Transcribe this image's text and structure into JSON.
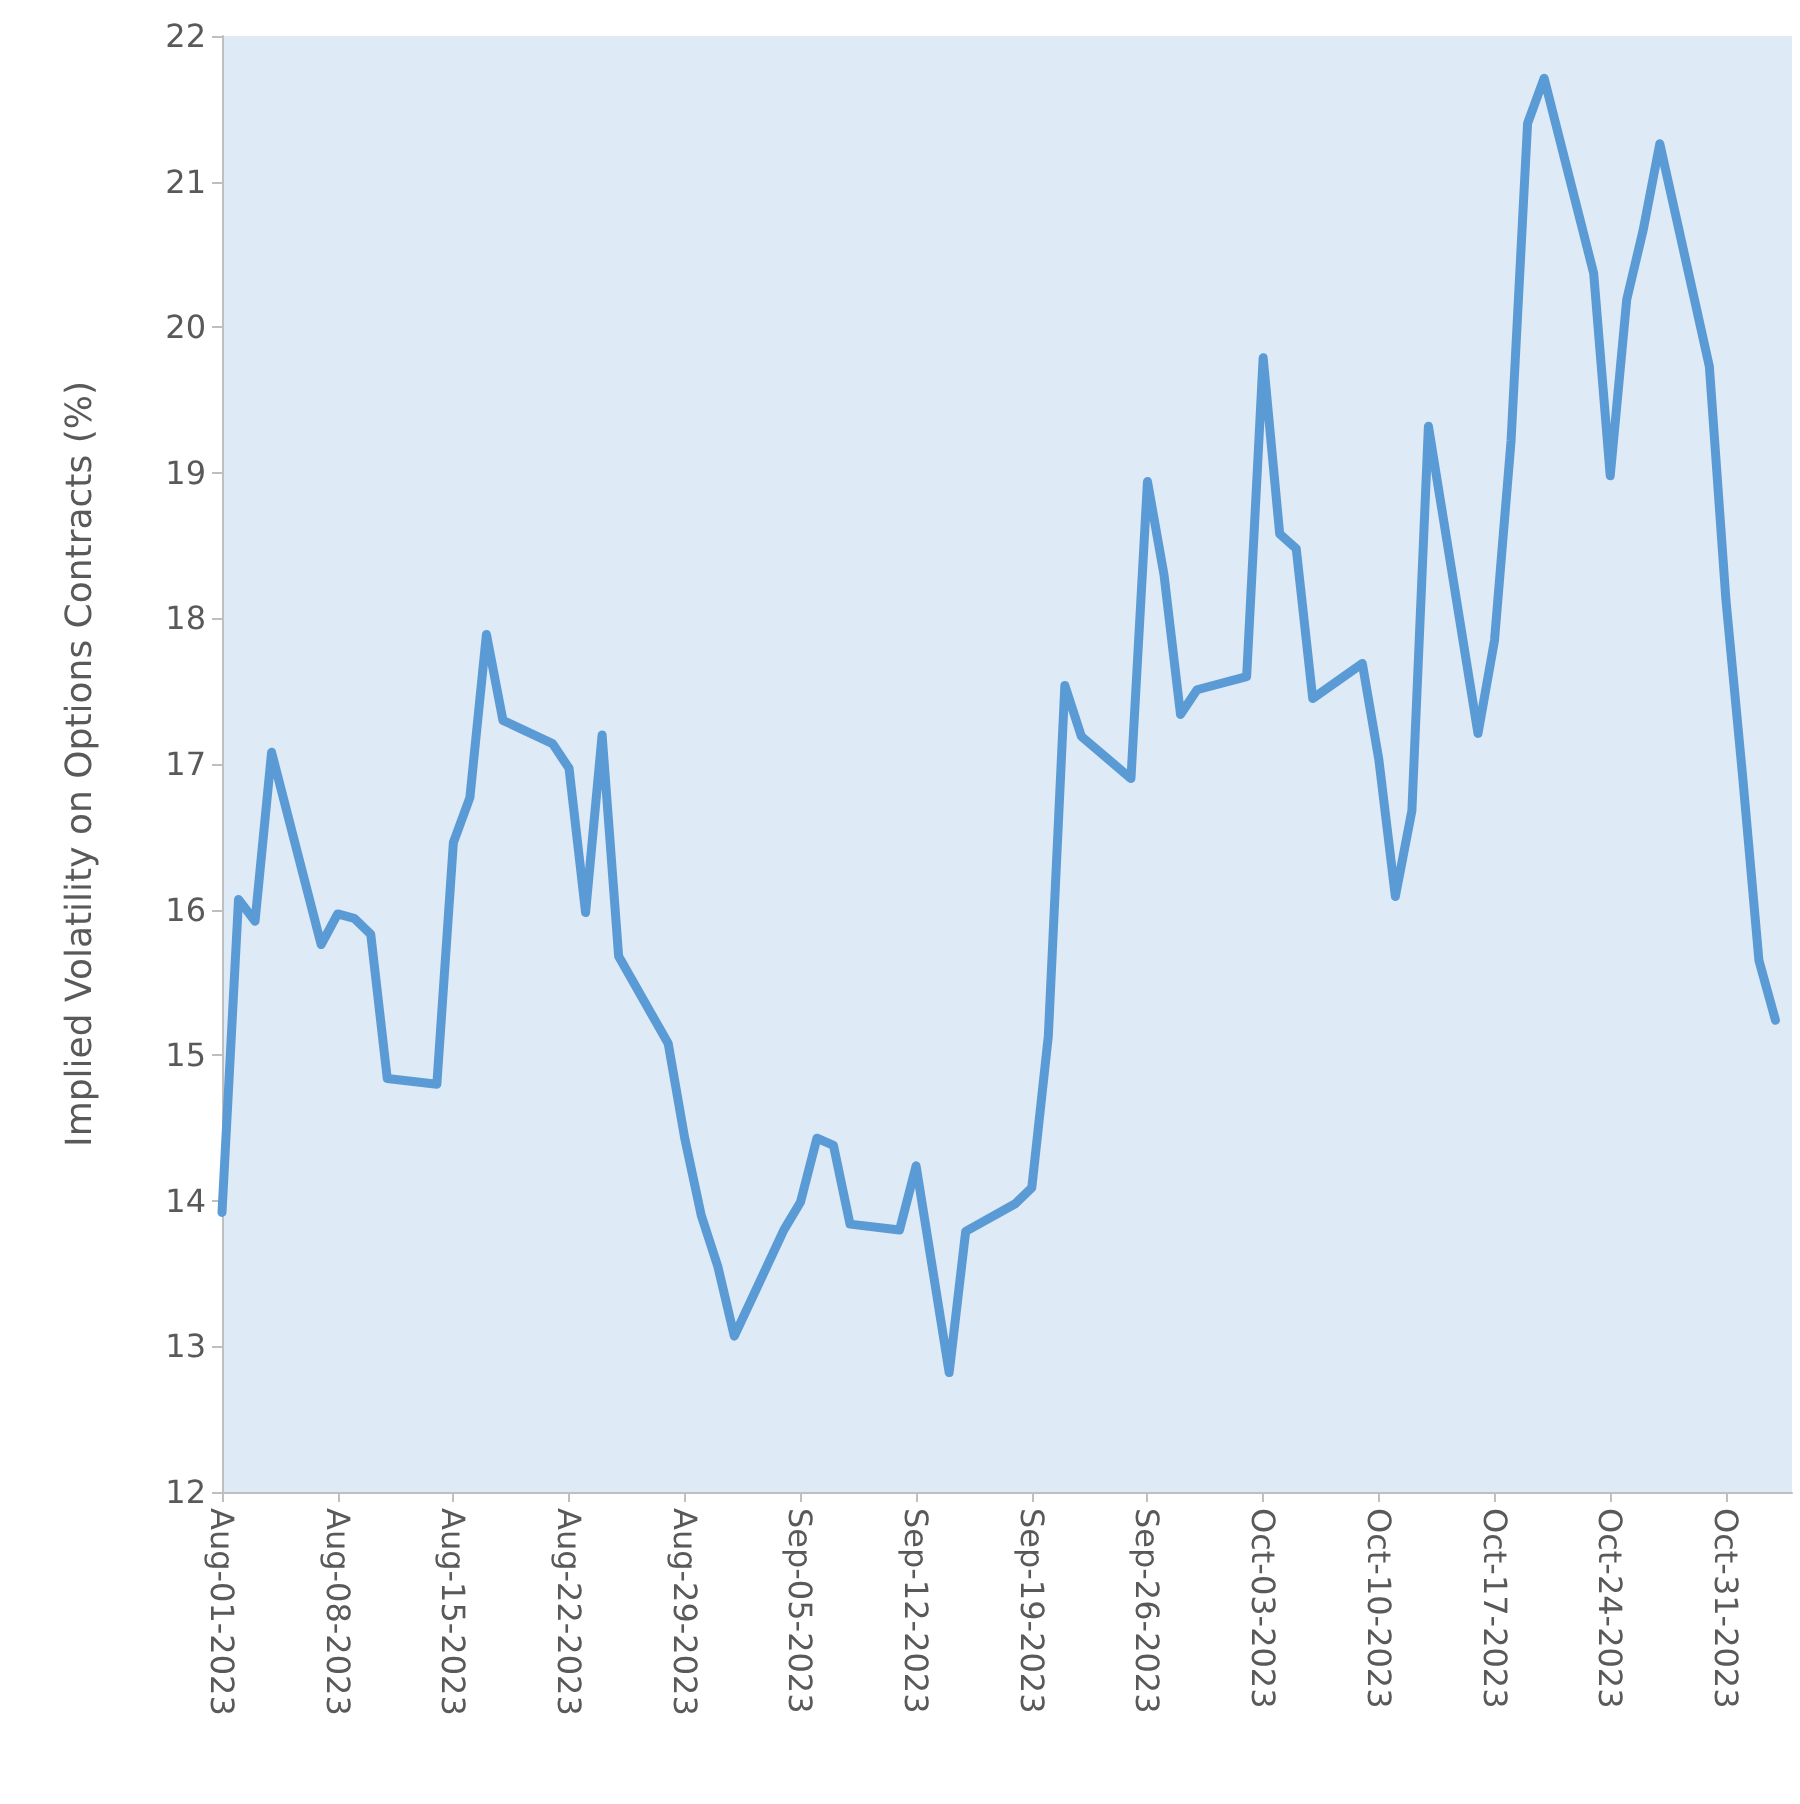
{
  "chart_data": {
    "type": "line",
    "ylabel": "Implied Volatility on Options Contracts (%)",
    "x": [
      "2023-08-01",
      "2023-08-02",
      "2023-08-03",
      "2023-08-04",
      "2023-08-07",
      "2023-08-08",
      "2023-08-09",
      "2023-08-10",
      "2023-08-11",
      "2023-08-14",
      "2023-08-15",
      "2023-08-16",
      "2023-08-17",
      "2023-08-18",
      "2023-08-21",
      "2023-08-22",
      "2023-08-23",
      "2023-08-24",
      "2023-08-25",
      "2023-08-28",
      "2023-08-29",
      "2023-08-30",
      "2023-08-31",
      "2023-09-01",
      "2023-09-04",
      "2023-09-05",
      "2023-09-06",
      "2023-09-07",
      "2023-09-08",
      "2023-09-11",
      "2023-09-12",
      "2023-09-14",
      "2023-09-15",
      "2023-09-18",
      "2023-09-19",
      "2023-09-20",
      "2023-09-21",
      "2023-09-22",
      "2023-09-25",
      "2023-09-26",
      "2023-09-27",
      "2023-09-28",
      "2023-09-29",
      "2023-10-02",
      "2023-10-03",
      "2023-10-04",
      "2023-10-05",
      "2023-10-06",
      "2023-10-09",
      "2023-10-10",
      "2023-10-11",
      "2023-10-12",
      "2023-10-13",
      "2023-10-16",
      "2023-10-17",
      "2023-10-18",
      "2023-10-19",
      "2023-10-20",
      "2023-10-23",
      "2023-10-24",
      "2023-10-25",
      "2023-10-26",
      "2023-10-27",
      "2023-10-30",
      "2023-10-31",
      "2023-11-01",
      "2023-11-02",
      "2023-11-03"
    ],
    "series": [
      {
        "color": "#5b9bd5",
        "values": [
          13.92,
          16.07,
          15.92,
          17.08,
          15.76,
          15.97,
          15.94,
          15.83,
          14.84,
          14.8,
          16.46,
          16.77,
          17.89,
          17.3,
          17.14,
          16.97,
          15.98,
          17.2,
          15.68,
          15.08,
          14.43,
          13.9,
          13.55,
          13.07,
          13.8,
          13.99,
          14.43,
          14.38,
          13.84,
          13.8,
          14.24,
          12.82,
          13.79,
          13.98,
          14.09,
          15.13,
          17.54,
          17.19,
          16.9,
          18.94,
          18.3,
          17.34,
          17.51,
          17.6,
          19.79,
          18.58,
          18.48,
          17.45,
          17.69,
          17.03,
          16.09,
          16.68,
          19.32,
          17.21,
          17.85,
          19.22,
          21.4,
          21.71,
          20.37,
          18.98,
          20.19,
          20.67,
          21.26,
          19.73,
          18.13,
          16.93,
          15.65,
          15.24
        ]
      }
    ],
    "xlim": [
      "2023-08-01",
      "2023-11-04"
    ],
    "xticks": [
      {
        "value": "2023-08-01",
        "label": "Aug-01-2023"
      },
      {
        "value": "2023-08-08",
        "label": "Aug-08-2023"
      },
      {
        "value": "2023-08-15",
        "label": "Aug-15-2023"
      },
      {
        "value": "2023-08-22",
        "label": "Aug-22-2023"
      },
      {
        "value": "2023-08-29",
        "label": "Aug-29-2023"
      },
      {
        "value": "2023-09-05",
        "label": "Sep-05-2023"
      },
      {
        "value": "2023-09-12",
        "label": "Sep-12-2023"
      },
      {
        "value": "2023-09-19",
        "label": "Sep-19-2023"
      },
      {
        "value": "2023-09-26",
        "label": "Sep-26-2023"
      },
      {
        "value": "2023-10-03",
        "label": "Oct-03-2023"
      },
      {
        "value": "2023-10-10",
        "label": "Oct-10-2023"
      },
      {
        "value": "2023-10-17",
        "label": "Oct-17-2023"
      },
      {
        "value": "2023-10-24",
        "label": "Oct-24-2023"
      },
      {
        "value": "2023-10-31",
        "label": "Oct-31-2023"
      }
    ],
    "ylim": [
      12,
      22
    ],
    "yticks": [
      12,
      13,
      14,
      15,
      16,
      17,
      18,
      19,
      20,
      21,
      22
    ],
    "grid": false,
    "marker": "none",
    "line_style": "solid"
  }
}
